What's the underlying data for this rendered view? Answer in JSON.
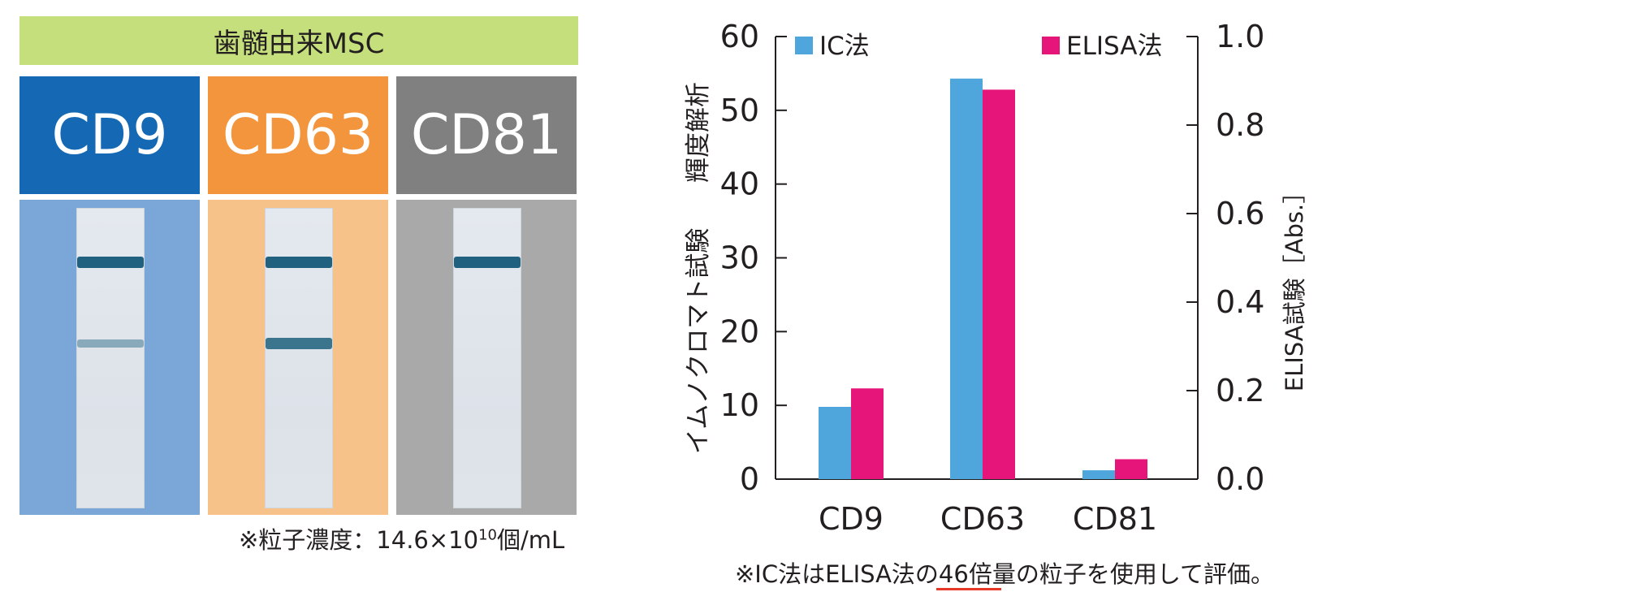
{
  "figure": {
    "source_label": "歯髄由来MSC",
    "strips": [
      {
        "marker": "CD9",
        "header_color": "#1468b4",
        "panel_color": "#7aa6d8",
        "bands": [
          {
            "pos": 0.18,
            "intensity": 1.0
          },
          {
            "pos": 0.45,
            "intensity": 0.25
          }
        ]
      },
      {
        "marker": "CD63",
        "header_color": "#f2953c",
        "panel_color": "#f7c28a",
        "bands": [
          {
            "pos": 0.18,
            "intensity": 1.0
          },
          {
            "pos": 0.45,
            "intensity": 0.8
          }
        ]
      },
      {
        "marker": "CD81",
        "header_color": "#808080",
        "panel_color": "#a9a9a9",
        "bands": [
          {
            "pos": 0.18,
            "intensity": 1.0
          }
        ]
      }
    ],
    "particle_note_prefix": "※粒子濃度：14.6×10",
    "particle_note_exp": "10",
    "particle_note_suffix": "個/mL",
    "bottom_note_prefix": "※IC法はELISA法の",
    "bottom_note_highlight": "46倍量",
    "bottom_note_suffix": "の粒子を使用して評価。"
  },
  "chart_data": {
    "type": "bar",
    "categories": [
      "CD9",
      "CD63",
      "CD81"
    ],
    "series": [
      {
        "name": "IC法",
        "axis": "left",
        "color": "#4ea6dc",
        "values": [
          9.8,
          54.3,
          1.2
        ]
      },
      {
        "name": "ELISA法",
        "axis": "right",
        "color": "#e5157a",
        "values": [
          0.205,
          0.88,
          0.045
        ]
      }
    ],
    "ylabel_left_a": "イムノクロマト試験",
    "ylabel_left_b": "輝度解析",
    "ylabel_right": "ELISA試験［Abs.］",
    "ylim_left": [
      0,
      60
    ],
    "ylim_right": [
      0,
      1.0
    ],
    "left_ticks": [
      "0",
      "10",
      "20",
      "30",
      "40",
      "50",
      "60"
    ],
    "right_ticks": [
      "0.0",
      "0.2",
      "0.4",
      "0.6",
      "0.8",
      "1.0"
    ],
    "legend_placement": "top",
    "grid": false
  }
}
